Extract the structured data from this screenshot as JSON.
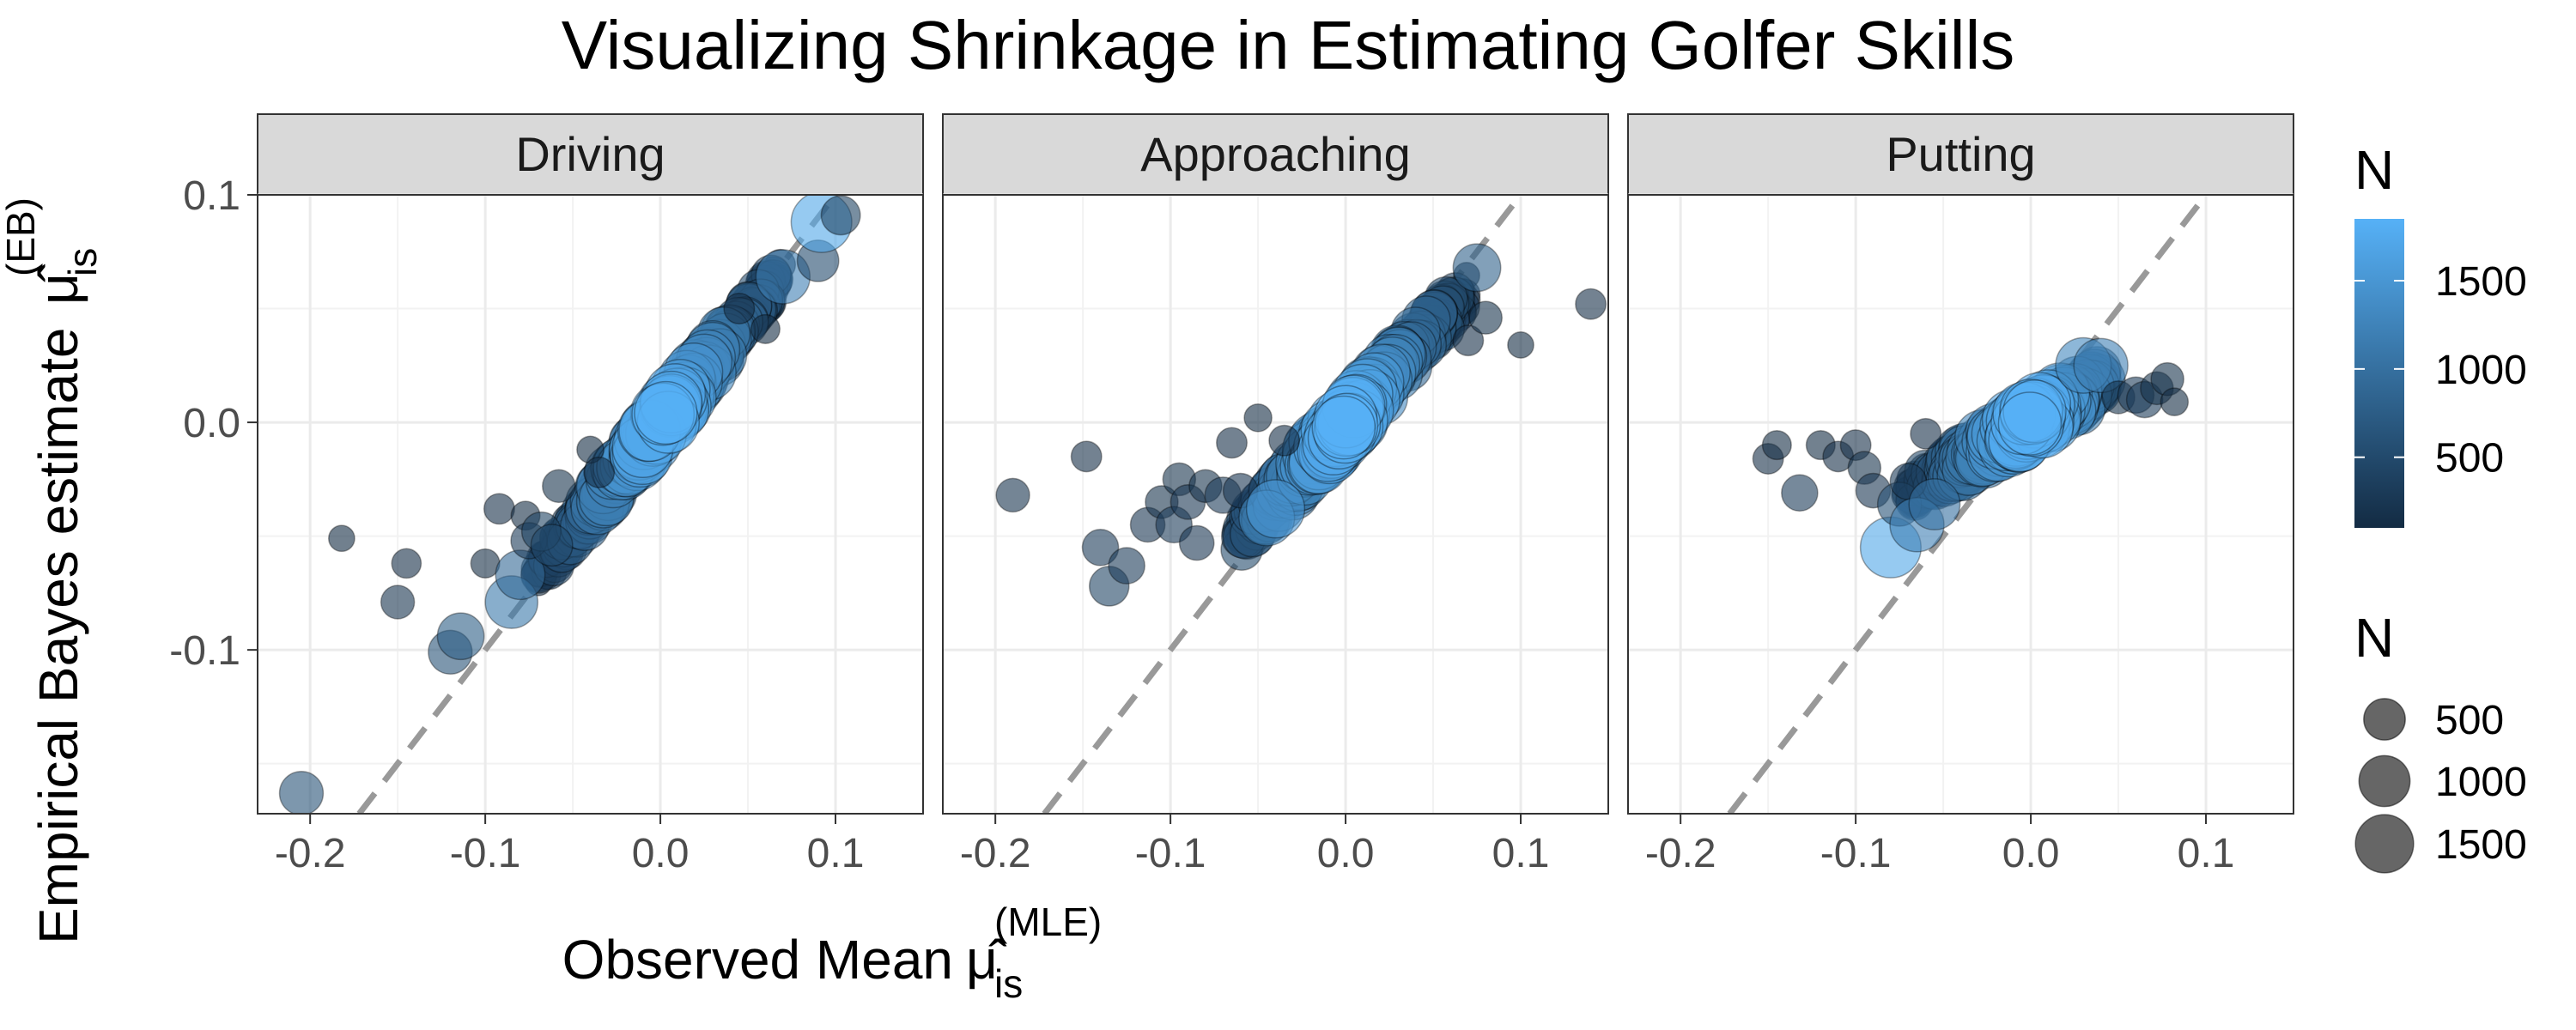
{
  "chart_data": {
    "type": "scatter",
    "title": "Visualizing Shrinkage in Estimating Golfer Skills",
    "xlabel": "Observed Mean",
    "xlabel_symbol": "μ̂",
    "xlabel_subscript": "is",
    "xlabel_superscript": "(MLE)",
    "ylabel": "Empirical Bayes estimate",
    "ylabel_symbol": "μ̂",
    "ylabel_subscript": "is",
    "ylabel_superscript": "(EB)",
    "xlim": [
      -0.23,
      0.15
    ],
    "ylim": [
      -0.172,
      0.1
    ],
    "x_ticks": [
      -0.2,
      -0.1,
      0.0,
      0.1
    ],
    "x_tick_labels": [
      "-0.2",
      "-0.1",
      "0.0",
      "0.1"
    ],
    "y_ticks": [
      -0.1,
      0.0,
      0.1
    ],
    "y_tick_labels": [
      "-0.1",
      "0.0",
      "0.1"
    ],
    "grid": true,
    "reference_line": {
      "style": "dashed",
      "slope": 1,
      "intercept": 0,
      "color": "#999999"
    },
    "legend_placement": "right",
    "legends": {
      "color": {
        "title": "N",
        "ticks": [
          500,
          1000,
          1500
        ],
        "tick_labels": [
          "500",
          "1000",
          "1500"
        ],
        "range": [
          100,
          1850
        ],
        "low_color": "#132B43",
        "high_color": "#56B1F7"
      },
      "size": {
        "title": "N",
        "entries": [
          500,
          1000,
          1500
        ],
        "entry_labels": [
          "500",
          "1000",
          "1500"
        ]
      }
    },
    "panels": [
      {
        "name": "Driving",
        "slope": 0.96,
        "points": [
          {
            "x": -0.205,
            "y": -0.163,
            "n": 600
          },
          {
            "x": -0.182,
            "y": -0.051,
            "n": 80
          },
          {
            "x": -0.15,
            "y": -0.079,
            "n": 220
          },
          {
            "x": -0.145,
            "y": -0.062,
            "n": 130
          },
          {
            "x": -0.12,
            "y": -0.101,
            "n": 600
          },
          {
            "x": -0.114,
            "y": -0.094,
            "n": 750
          },
          {
            "x": -0.1,
            "y": -0.062,
            "n": 120
          },
          {
            "x": -0.085,
            "y": -0.079,
            "n": 1100
          },
          {
            "x": -0.08,
            "y": -0.067,
            "n": 900
          },
          {
            "x": -0.092,
            "y": -0.038,
            "n": 150
          },
          {
            "x": -0.077,
            "y": -0.041,
            "n": 120
          },
          {
            "x": -0.075,
            "y": -0.052,
            "n": 300
          },
          {
            "x": -0.068,
            "y": -0.048,
            "n": 400
          },
          {
            "x": -0.062,
            "y": -0.054,
            "n": 500
          },
          {
            "x": -0.058,
            "y": -0.028,
            "n": 200
          },
          {
            "x": -0.04,
            "y": -0.012,
            "n": 90
          },
          {
            "x": -0.035,
            "y": -0.022,
            "n": 150
          },
          {
            "x": 0.045,
            "y": 0.05,
            "n": 150
          },
          {
            "x": 0.06,
            "y": 0.041,
            "n": 120
          },
          {
            "x": 0.07,
            "y": 0.064,
            "n": 1200
          },
          {
            "x": 0.09,
            "y": 0.071,
            "n": 500
          },
          {
            "x": 0.092,
            "y": 0.088,
            "n": 1700
          },
          {
            "x": 0.103,
            "y": 0.091,
            "n": 400
          }
        ],
        "mass": {
          "x_min": -0.07,
          "x_max": 0.07,
          "spread": 0.005,
          "count": 220
        }
      },
      {
        "name": "Approaching",
        "slope": 0.85,
        "points": [
          {
            "x": -0.19,
            "y": -0.032,
            "n": 220
          },
          {
            "x": -0.148,
            "y": -0.015,
            "n": 150
          },
          {
            "x": -0.14,
            "y": -0.055,
            "n": 300
          },
          {
            "x": -0.135,
            "y": -0.072,
            "n": 420
          },
          {
            "x": -0.125,
            "y": -0.063,
            "n": 300
          },
          {
            "x": -0.113,
            "y": -0.045,
            "n": 250
          },
          {
            "x": -0.105,
            "y": -0.035,
            "n": 200
          },
          {
            "x": -0.098,
            "y": -0.045,
            "n": 300
          },
          {
            "x": -0.095,
            "y": -0.025,
            "n": 200
          },
          {
            "x": -0.09,
            "y": -0.035,
            "n": 250
          },
          {
            "x": -0.085,
            "y": -0.053,
            "n": 250
          },
          {
            "x": -0.08,
            "y": -0.028,
            "n": 200
          },
          {
            "x": -0.07,
            "y": -0.032,
            "n": 300
          },
          {
            "x": -0.065,
            "y": -0.009,
            "n": 150
          },
          {
            "x": -0.06,
            "y": -0.03,
            "n": 250
          },
          {
            "x": -0.05,
            "y": 0.002,
            "n": 100
          },
          {
            "x": -0.045,
            "y": -0.042,
            "n": 1300
          },
          {
            "x": -0.04,
            "y": -0.038,
            "n": 1500
          },
          {
            "x": -0.035,
            "y": -0.008,
            "n": 150
          },
          {
            "x": 0.07,
            "y": 0.036,
            "n": 150
          },
          {
            "x": 0.075,
            "y": 0.068,
            "n": 800
          },
          {
            "x": 0.08,
            "y": 0.046,
            "n": 200
          },
          {
            "x": 0.1,
            "y": 0.034,
            "n": 80
          },
          {
            "x": 0.14,
            "y": 0.052,
            "n": 150
          }
        ],
        "mass": {
          "x_min": -0.06,
          "x_max": 0.07,
          "spread": 0.006,
          "count": 230
        }
      },
      {
        "name": "Putting",
        "slope": 0.45,
        "points": [
          {
            "x": -0.15,
            "y": -0.016,
            "n": 150
          },
          {
            "x": -0.145,
            "y": -0.01,
            "n": 120
          },
          {
            "x": -0.132,
            "y": -0.031,
            "n": 300
          },
          {
            "x": -0.12,
            "y": -0.01,
            "n": 120
          },
          {
            "x": -0.11,
            "y": -0.015,
            "n": 150
          },
          {
            "x": -0.1,
            "y": -0.01,
            "n": 150
          },
          {
            "x": -0.095,
            "y": -0.02,
            "n": 200
          },
          {
            "x": -0.09,
            "y": -0.03,
            "n": 250
          },
          {
            "x": -0.08,
            "y": -0.055,
            "n": 1700
          },
          {
            "x": -0.075,
            "y": -0.036,
            "n": 600
          },
          {
            "x": -0.07,
            "y": -0.026,
            "n": 300
          },
          {
            "x": -0.065,
            "y": -0.045,
            "n": 1200
          },
          {
            "x": -0.06,
            "y": -0.005,
            "n": 150
          },
          {
            "x": -0.055,
            "y": -0.036,
            "n": 1000
          },
          {
            "x": 0.03,
            "y": 0.025,
            "n": 1300
          },
          {
            "x": 0.04,
            "y": 0.025,
            "n": 1200
          },
          {
            "x": 0.05,
            "y": 0.011,
            "n": 200
          },
          {
            "x": 0.06,
            "y": 0.012,
            "n": 300
          },
          {
            "x": 0.065,
            "y": 0.01,
            "n": 300
          },
          {
            "x": 0.072,
            "y": 0.015,
            "n": 200
          },
          {
            "x": 0.078,
            "y": 0.019,
            "n": 200
          },
          {
            "x": 0.082,
            "y": 0.009,
            "n": 100
          }
        ],
        "mass": {
          "x_min": -0.07,
          "x_max": 0.04,
          "spread": 0.006,
          "count": 230
        }
      }
    ]
  }
}
